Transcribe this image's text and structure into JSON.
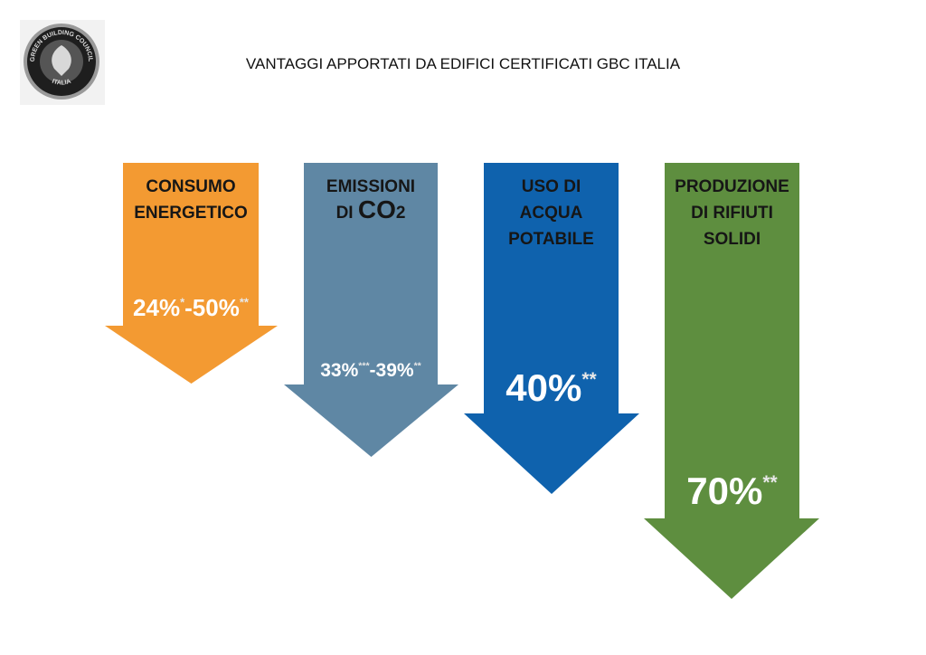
{
  "logo": {
    "top_text": "GREEN BUILDING COUNCIL",
    "bottom_text": "ITALIA"
  },
  "title": "VANTAGGI APPORTATI DA EDIFICI CERTIFICATI GBC ITALIA",
  "arrows": [
    {
      "lines": [
        "CONSUMO",
        "ENERGETICO"
      ],
      "value": [
        {
          "text": "24%",
          "sup": "*"
        },
        {
          "text": "-50%",
          "sup": "**"
        }
      ]
    },
    {
      "lines": [
        "EMISSIONI",
        "DI"
      ],
      "formula": {
        "main": "CO",
        "sub": "2"
      },
      "value": [
        {
          "text": "33%",
          "sup": "***"
        },
        {
          "text": "-39%",
          "sup": "**"
        }
      ]
    },
    {
      "lines": [
        "USO DI",
        "ACQUA",
        "POTABILE"
      ],
      "value": [
        {
          "text": "40%",
          "sup": "**"
        }
      ]
    },
    {
      "lines": [
        "PRODUZIONE",
        "DI RIFIUTI",
        "SOLIDI"
      ],
      "value": [
        {
          "text": "70%",
          "sup": "**"
        }
      ]
    }
  ]
}
